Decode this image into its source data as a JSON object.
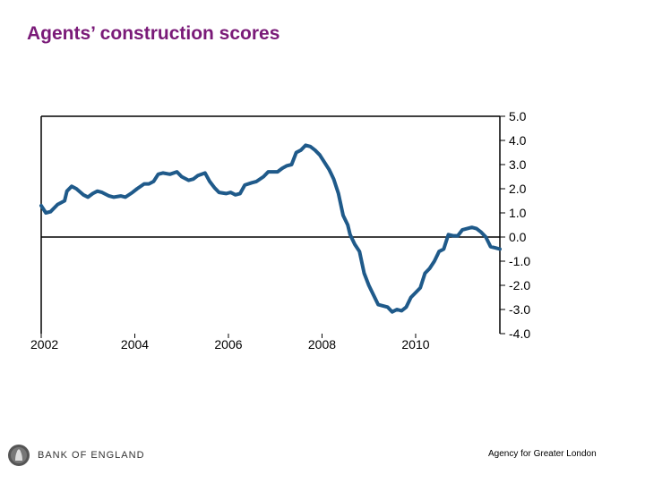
{
  "slide": {
    "title": "Agents’ construction scores",
    "footer_logo_text": "BANK OF ENGLAND",
    "footer_right": "Agency for Greater London"
  },
  "colors": {
    "title": "#7a1a78",
    "line": "#1f5a8a",
    "axis": "#000000"
  },
  "icons": {
    "logo": "bank-of-england-seal-icon"
  },
  "chart_data": {
    "type": "line",
    "title": "",
    "xlabel": "",
    "ylabel": "",
    "xlim": [
      2002.0,
      2011.8
    ],
    "ylim": [
      -4.0,
      5.0
    ],
    "x_ticks": [
      2002,
      2004,
      2006,
      2008,
      2010
    ],
    "x_tick_labels": [
      "2002",
      "2004",
      "2006",
      "2008",
      "2010"
    ],
    "y_ticks": [
      5,
      4,
      3,
      2,
      1,
      0,
      -1,
      -2,
      -3,
      -4
    ],
    "y_tick_labels": [
      "5.0",
      "4.0",
      "3.0",
      "2.0",
      "1.0",
      "0.0",
      "-1.0",
      "-2.0",
      "-3.0",
      "-4.0"
    ],
    "y_axis_side": "right",
    "zero_line": true,
    "grid": false,
    "series": [
      {
        "x": [
          2002.0,
          2002.1,
          2002.2,
          2002.35,
          2002.5,
          2002.55,
          2002.65,
          2002.75,
          2002.9,
          2003.0,
          2003.1,
          2003.2,
          2003.3,
          2003.45,
          2003.55,
          2003.7,
          2003.8,
          2003.95,
          2004.05,
          2004.2,
          2004.3,
          2004.4,
          2004.5,
          2004.6,
          2004.75,
          2004.9,
          2005.0,
          2005.15,
          2005.25,
          2005.35,
          2005.5,
          2005.6,
          2005.7,
          2005.8,
          2005.95,
          2006.05,
          2006.15,
          2006.25,
          2006.35,
          2006.5,
          2006.6,
          2006.75,
          2006.85,
          2006.95,
          2007.05,
          2007.15,
          2007.25,
          2007.35,
          2007.45,
          2007.55,
          2007.65,
          2007.75,
          2007.85,
          2007.95,
          2008.05,
          2008.15,
          2008.2,
          2008.25,
          2008.35,
          2008.45,
          2008.55,
          2008.6,
          2008.7,
          2008.8,
          2008.9,
          2009.0,
          2009.1,
          2009.2,
          2009.3,
          2009.4,
          2009.5,
          2009.6,
          2009.7,
          2009.8,
          2009.9,
          2010.0,
          2010.1,
          2010.2,
          2010.3,
          2010.4,
          2010.5,
          2010.6,
          2010.7,
          2010.8,
          2010.85,
          2010.9,
          2011.0,
          2011.1,
          2011.2,
          2011.3,
          2011.4,
          2011.5,
          2011.6,
          2011.7,
          2011.8
        ],
        "values": [
          1.3,
          1.0,
          1.05,
          1.35,
          1.5,
          1.9,
          2.1,
          2.0,
          1.75,
          1.65,
          1.8,
          1.9,
          1.85,
          1.7,
          1.65,
          1.7,
          1.65,
          1.85,
          2.0,
          2.2,
          2.2,
          2.3,
          2.6,
          2.65,
          2.6,
          2.7,
          2.5,
          2.35,
          2.4,
          2.55,
          2.65,
          2.3,
          2.05,
          1.85,
          1.8,
          1.85,
          1.75,
          1.8,
          2.15,
          2.25,
          2.3,
          2.5,
          2.7,
          2.7,
          2.7,
          2.85,
          2.95,
          3.0,
          3.5,
          3.6,
          3.8,
          3.75,
          3.6,
          3.4,
          3.1,
          2.8,
          2.6,
          2.4,
          1.8,
          0.9,
          0.5,
          0.1,
          -0.3,
          -0.6,
          -1.5,
          -2.0,
          -2.4,
          -2.8,
          -2.85,
          -2.9,
          -3.1,
          -3.0,
          -3.05,
          -2.9,
          -2.5,
          -2.3,
          -2.1,
          -1.5,
          -1.3,
          -1.0,
          -0.6,
          -0.5,
          0.1,
          0.05,
          0.05,
          0.05,
          0.3,
          0.35,
          0.4,
          0.35,
          0.2,
          0.0,
          -0.4,
          -0.45,
          -0.5
        ]
      }
    ]
  }
}
